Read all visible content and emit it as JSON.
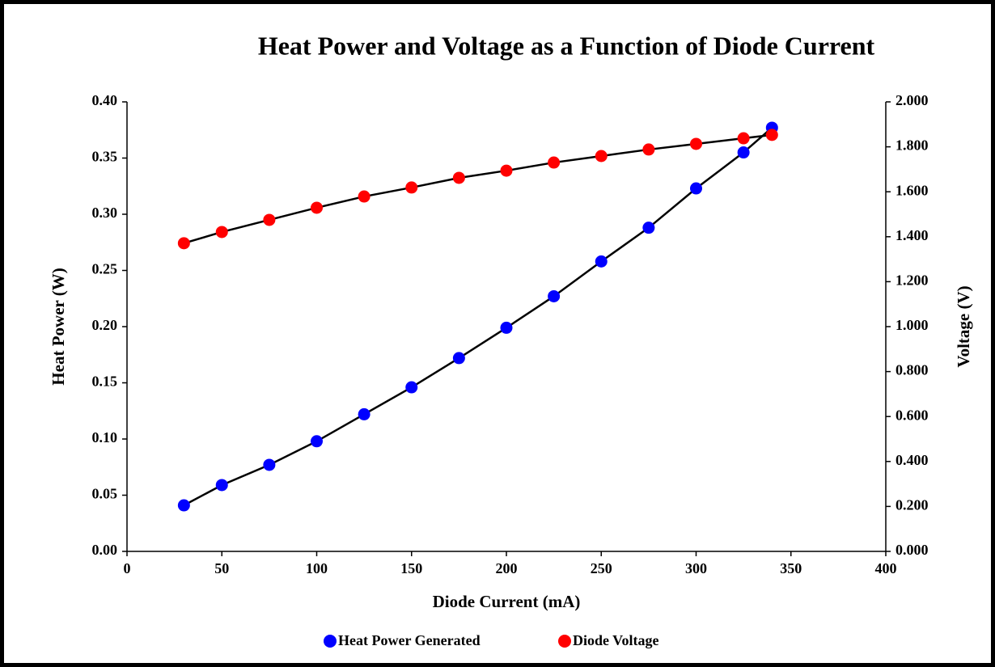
{
  "chart_data": {
    "type": "scatter",
    "title": "Heat Power and Voltage as a Function of Diode Current",
    "xlabel": "Diode Current (mA)",
    "ylabel": "Heat Power (W)",
    "y2label": "Voltage (V)",
    "x": [
      30,
      50,
      75,
      100,
      125,
      150,
      175,
      200,
      225,
      250,
      275,
      300,
      325,
      340
    ],
    "series": [
      {
        "name": "Heat Power Generated",
        "color": "#0000ff",
        "axis": "y",
        "values": [
          0.041,
          0.059,
          0.077,
          0.098,
          0.122,
          0.146,
          0.172,
          0.199,
          0.227,
          0.258,
          0.288,
          0.323,
          0.355,
          0.377
        ]
      },
      {
        "name": "Diode Voltage",
        "color": "#ff0000",
        "axis": "y2",
        "values": [
          1.371,
          1.421,
          1.475,
          1.529,
          1.579,
          1.619,
          1.662,
          1.694,
          1.73,
          1.759,
          1.788,
          1.813,
          1.838,
          1.853
        ]
      }
    ],
    "trendline_color": "#000000",
    "xlim": [
      0,
      400
    ],
    "xticks": [
      0,
      50,
      100,
      150,
      200,
      250,
      300,
      350,
      400
    ],
    "ylim": [
      0,
      0.4
    ],
    "yticks": [
      {
        "value": 0,
        "label": "0.00"
      },
      {
        "value": 0.05,
        "label": "0.05"
      },
      {
        "value": 0.1,
        "label": "0.10"
      },
      {
        "value": 0.15,
        "label": "0.15"
      },
      {
        "value": 0.2,
        "label": "0.20"
      },
      {
        "value": 0.25,
        "label": "0.25"
      },
      {
        "value": 0.3,
        "label": "0.30"
      },
      {
        "value": 0.35,
        "label": "0.35"
      },
      {
        "value": 0.4,
        "label": "0.40"
      }
    ],
    "y2lim": [
      0,
      2
    ],
    "y2ticks": [
      {
        "value": 0,
        "label": "0.000"
      },
      {
        "value": 0.2,
        "label": "0.200"
      },
      {
        "value": 0.4,
        "label": "0.400"
      },
      {
        "value": 0.6,
        "label": "0.600"
      },
      {
        "value": 0.8,
        "label": "0.800"
      },
      {
        "value": 1.0,
        "label": "1.000"
      },
      {
        "value": 1.2,
        "label": "1.200"
      },
      {
        "value": 1.4,
        "label": "1.400"
      },
      {
        "value": 1.6,
        "label": "1.600"
      },
      {
        "value": 1.8,
        "label": "1.800"
      },
      {
        "value": 2.0,
        "label": "2.000"
      }
    ],
    "legend": "bottom",
    "grid": false
  }
}
